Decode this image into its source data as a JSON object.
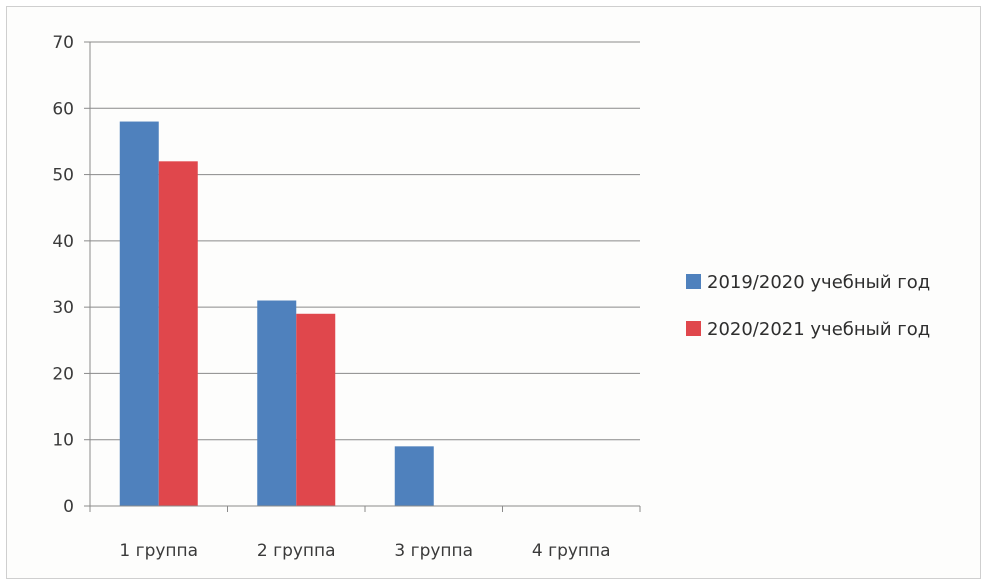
{
  "chart_data": {
    "type": "bar",
    "categories": [
      "1 группа",
      "2 группа",
      "3 группа",
      "4 группа"
    ],
    "series": [
      {
        "name": "2019/2020 учебный год",
        "values": [
          58,
          31,
          9,
          0
        ],
        "color": "#4f81bd"
      },
      {
        "name": "2020/2021 учебный год",
        "values": [
          52,
          29,
          0,
          0
        ],
        "color": "#e0474c"
      }
    ],
    "title": "",
    "xlabel": "",
    "ylabel": "",
    "ylim": [
      0,
      70
    ],
    "yticks": [
      0,
      10,
      20,
      30,
      40,
      50,
      60,
      70
    ],
    "grid": true,
    "legend_position": "right"
  }
}
